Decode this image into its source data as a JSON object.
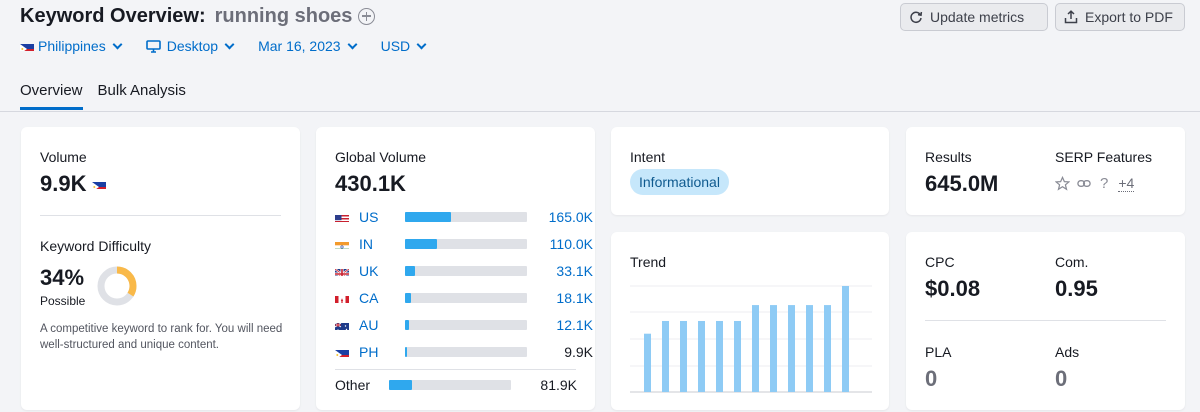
{
  "header": {
    "title": "Keyword Overview:",
    "keyword": "running shoes",
    "update_label": "Update metrics",
    "export_label": "Export to PDF"
  },
  "filters": {
    "country": "Philippines",
    "device": "Desktop",
    "date": "Mar 16, 2023",
    "currency": "USD"
  },
  "tabs": [
    {
      "label": "Overview",
      "active": true
    },
    {
      "label": "Bulk Analysis",
      "active": false
    }
  ],
  "volume": {
    "label": "Volume",
    "value": "9.9K"
  },
  "difficulty": {
    "label": "Keyword Difficulty",
    "value": "34%",
    "level": "Possible",
    "percent": 34,
    "description": "A competitive keyword to rank for. You will need well-structured and unique content."
  },
  "global_volume": {
    "label": "Global Volume",
    "value": "430.1K",
    "rows": [
      {
        "code": "US",
        "value": "165.0K",
        "fraction": 0.38,
        "flag": "us-flag-icon"
      },
      {
        "code": "IN",
        "value": "110.0K",
        "fraction": 0.26,
        "flag": "in-flag-icon"
      },
      {
        "code": "UK",
        "value": "33.1K",
        "fraction": 0.08,
        "flag": "uk-flag-icon"
      },
      {
        "code": "CA",
        "value": "18.1K",
        "fraction": 0.05,
        "flag": "ca-flag-icon"
      },
      {
        "code": "AU",
        "value": "12.1K",
        "fraction": 0.03,
        "flag": "au-flag-icon"
      },
      {
        "code": "PH",
        "value": "9.9K",
        "fraction": 0.02,
        "flag": "ph-flag-icon"
      }
    ],
    "other": {
      "label": "Other",
      "value": "81.9K",
      "fraction": 0.19
    }
  },
  "intent": {
    "label": "Intent",
    "value": "Informational"
  },
  "trend": {
    "label": "Trend",
    "values": [
      0.55,
      0.67,
      0.67,
      0.67,
      0.67,
      0.67,
      0.82,
      0.82,
      0.82,
      0.82,
      0.82,
      1.0
    ]
  },
  "results": {
    "label": "Results",
    "value": "645.0M"
  },
  "serp": {
    "label": "SERP Features",
    "more": "+4"
  },
  "cpc": {
    "label": "CPC",
    "value": "$0.08"
  },
  "com": {
    "label": "Com.",
    "value": "0.95"
  },
  "pla": {
    "label": "PLA",
    "value": "0"
  },
  "ads": {
    "label": "Ads",
    "value": "0"
  },
  "colors": {
    "accent": "#006dca",
    "bar": "#2fa8ee",
    "trend_bar": "#8ecbf5",
    "difficulty": "#f9b949",
    "badge_bg": "#c6e7fb"
  }
}
